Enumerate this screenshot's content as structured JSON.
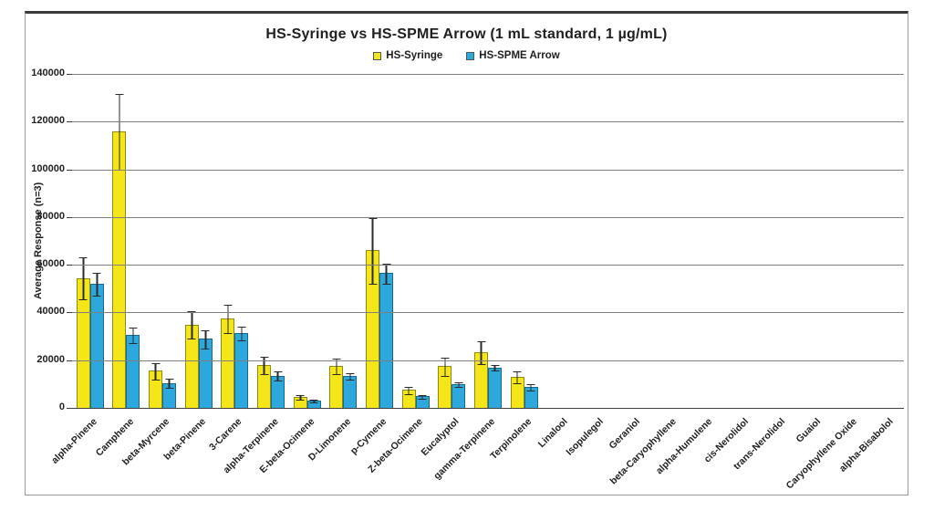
{
  "chart": {
    "title": "HS-Syringe vs HS-SPME Arrow (1 mL standard, 1 µg/mL)",
    "y_axis_title": "Average Response (n=3)",
    "legend": [
      {
        "label": "HS-Syringe",
        "color": "#F5E61A"
      },
      {
        "label": "HS-SPME Arrow",
        "color": "#2CA8DC"
      }
    ],
    "y_tick_labels": [
      "140000",
      "120000",
      "100000",
      "80000",
      "60000",
      "40000",
      "20000",
      "0"
    ]
  },
  "chart_data": {
    "type": "bar",
    "title": "HS-Syringe vs HS-SPME Arrow (1 mL standard, 1 µg/mL)",
    "xlabel": "",
    "ylabel": "Average Response (n=3)",
    "ylim": [
      0,
      140000
    ],
    "y_tick_step": 20000,
    "grid": true,
    "legend_position": "top-center",
    "error_bars": true,
    "categories": [
      "alpha-Pinene",
      "Camphene",
      "beta-Myrcene",
      "beta-Pinene",
      "3-Carene",
      "alpha-Terpinene",
      "E-beta-Ocimene",
      "D-Limonene",
      "p-Cymene",
      "Z-beta-Ocimene",
      "Eucalyptol",
      "gamma-Terpinene",
      "Terpinolene",
      "Linalool",
      "Isopulegol",
      "Geraniol",
      "beta-Caryophyllene",
      "alpha-Humulene",
      "cis-Nerolidol",
      "trans-Nerolidol",
      "Guaiol",
      "Caryophyllene Oxide",
      "alpha-Bisabolol"
    ],
    "series": [
      {
        "name": "HS-Syringe",
        "color": "#F5E61A",
        "values": [
          54500,
          116000,
          15500,
          35000,
          37500,
          18000,
          4500,
          17500,
          66000,
          7500,
          17500,
          23500,
          13000,
          0,
          0,
          0,
          0,
          0,
          0,
          0,
          0,
          0,
          0
        ],
        "errors": [
          9000,
          16000,
          3500,
          6000,
          6000,
          4000,
          1200,
          3500,
          14000,
          1800,
          4000,
          5000,
          2500,
          0,
          0,
          0,
          0,
          0,
          0,
          0,
          0,
          0,
          0
        ]
      },
      {
        "name": "HS-SPME Arrow",
        "color": "#2CA8DC",
        "values": [
          52000,
          30500,
          10500,
          29000,
          31500,
          13500,
          3200,
          13500,
          56500,
          4800,
          10000,
          17000,
          8800,
          0,
          0,
          0,
          0,
          0,
          0,
          0,
          0,
          0,
          0
        ],
        "errors": [
          5000,
          3500,
          2000,
          4000,
          3000,
          2200,
          800,
          1500,
          4500,
          1000,
          1200,
          1500,
          1500,
          0,
          0,
          0,
          0,
          0,
          0,
          0,
          0,
          0,
          0
        ]
      }
    ]
  }
}
